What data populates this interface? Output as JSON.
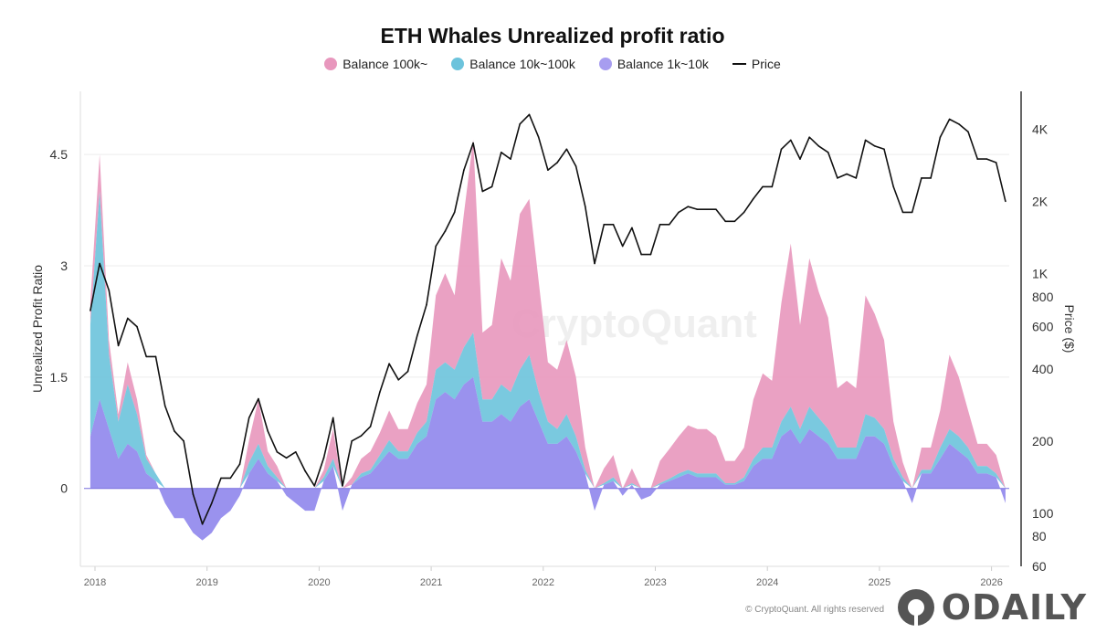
{
  "chart_data": {
    "type": "area",
    "title": "ETH Whales Unrealized profit ratio",
    "ylabel": "Unrealized Profit Ratio",
    "y2label": "Price ($)",
    "ylim": [
      -1.05,
      5.35
    ],
    "yticks": [
      "0",
      "1.5",
      "3",
      "4.5"
    ],
    "ytick_values": [
      0,
      1.5,
      3,
      4.5
    ],
    "y2scale": "log",
    "y2lim": [
      60,
      5750
    ],
    "y2ticks": [
      "4K",
      "2K",
      "1K",
      "800",
      "600",
      "400",
      "200",
      "100",
      "80",
      "60"
    ],
    "y2tick_values": [
      4000,
      2000,
      1000,
      800,
      600,
      400,
      200,
      100,
      80,
      60
    ],
    "xticks": [
      "2018",
      "2019",
      "2020",
      "2021",
      "2022",
      "2023",
      "2024",
      "2025",
      "2026"
    ],
    "legend_position": "top",
    "grid": true,
    "stacked": true,
    "x": [
      "2017-12",
      "2018-01",
      "2018-02",
      "2018-03",
      "2018-04",
      "2018-05",
      "2018-06",
      "2018-07",
      "2018-08",
      "2018-09",
      "2018-10",
      "2018-11",
      "2018-12",
      "2019-01",
      "2019-02",
      "2019-03",
      "2019-04",
      "2019-05",
      "2019-06",
      "2019-07",
      "2019-08",
      "2019-09",
      "2019-10",
      "2019-11",
      "2019-12",
      "2020-01",
      "2020-02",
      "2020-03",
      "2020-04",
      "2020-05",
      "2020-06",
      "2020-07",
      "2020-08",
      "2020-09",
      "2020-10",
      "2020-11",
      "2020-12",
      "2021-01",
      "2021-02",
      "2021-03",
      "2021-04",
      "2021-05",
      "2021-06",
      "2021-07",
      "2021-08",
      "2021-09",
      "2021-10",
      "2021-11",
      "2021-12",
      "2022-01",
      "2022-02",
      "2022-03",
      "2022-04",
      "2022-05",
      "2022-06",
      "2022-07",
      "2022-08",
      "2022-09",
      "2022-10",
      "2022-11",
      "2022-12",
      "2023-01",
      "2023-02",
      "2023-03",
      "2023-04",
      "2023-05",
      "2023-06",
      "2023-07",
      "2023-08",
      "2023-09",
      "2023-10",
      "2023-11",
      "2023-12",
      "2024-01",
      "2024-02",
      "2024-03",
      "2024-04",
      "2024-05",
      "2024-06",
      "2024-07",
      "2024-08",
      "2024-09",
      "2024-10",
      "2024-11",
      "2024-12",
      "2025-01",
      "2025-02",
      "2025-03",
      "2025-04",
      "2025-05",
      "2025-06",
      "2025-07",
      "2025-08",
      "2025-09",
      "2025-10",
      "2025-11",
      "2025-12",
      "2026-01",
      "2026-02"
    ],
    "series": [
      {
        "name": "Balance 1k~10k",
        "color": "#8f86ec",
        "values": [
          0.7,
          1.2,
          0.8,
          0.4,
          0.6,
          0.5,
          0.2,
          0.1,
          -0.2,
          -0.4,
          -0.4,
          -0.6,
          -0.7,
          -0.6,
          -0.4,
          -0.3,
          -0.1,
          0.2,
          0.4,
          0.2,
          0.1,
          -0.1,
          -0.2,
          -0.3,
          -0.3,
          0.1,
          0.3,
          -0.3,
          0.05,
          0.15,
          0.2,
          0.35,
          0.5,
          0.4,
          0.4,
          0.6,
          0.7,
          1.2,
          1.3,
          1.2,
          1.4,
          1.5,
          0.9,
          0.9,
          1.0,
          0.9,
          1.1,
          1.2,
          0.9,
          0.6,
          0.6,
          0.7,
          0.5,
          0.2,
          -0.3,
          0.05,
          0.1,
          -0.1,
          0.05,
          -0.15,
          -0.1,
          0.05,
          0.1,
          0.15,
          0.2,
          0.15,
          0.15,
          0.15,
          0.05,
          0.05,
          0.1,
          0.3,
          0.4,
          0.4,
          0.7,
          0.8,
          0.6,
          0.8,
          0.7,
          0.6,
          0.4,
          0.4,
          0.4,
          0.7,
          0.7,
          0.6,
          0.3,
          0.1,
          -0.2,
          0.2,
          0.2,
          0.4,
          0.6,
          0.5,
          0.4,
          0.2,
          0.2,
          0.15,
          -0.2
        ]
      },
      {
        "name": "Balance 10k~100k",
        "color": "#6cc3dc",
        "values": [
          1.5,
          2.8,
          1.0,
          0.5,
          0.8,
          0.5,
          0.2,
          0.1,
          0,
          0,
          0,
          0,
          0,
          0,
          0,
          0,
          0,
          0.15,
          0.2,
          0.1,
          0.05,
          0,
          0,
          0,
          0,
          0.05,
          0.1,
          0,
          0,
          0.05,
          0.05,
          0.1,
          0.15,
          0.1,
          0.1,
          0.15,
          0.2,
          0.4,
          0.4,
          0.4,
          0.5,
          0.6,
          0.3,
          0.3,
          0.4,
          0.4,
          0.5,
          0.6,
          0.4,
          0.3,
          0.2,
          0.3,
          0.2,
          0.05,
          0,
          0.02,
          0.05,
          0,
          0.02,
          0,
          0,
          0.02,
          0.03,
          0.05,
          0.05,
          0.05,
          0.05,
          0.05,
          0.02,
          0.02,
          0.05,
          0.1,
          0.15,
          0.15,
          0.2,
          0.3,
          0.2,
          0.3,
          0.25,
          0.2,
          0.15,
          0.15,
          0.15,
          0.3,
          0.25,
          0.2,
          0.1,
          0.05,
          0,
          0.05,
          0.05,
          0.15,
          0.2,
          0.2,
          0.15,
          0.1,
          0.1,
          0.05,
          0
        ]
      },
      {
        "name": "Balance 100k~",
        "color": "#e897bd",
        "values": [
          0.3,
          0.5,
          0.2,
          0.1,
          0.3,
          0.2,
          0.05,
          0,
          0,
          0,
          0,
          0,
          0,
          0,
          0,
          0,
          0,
          0.3,
          0.6,
          0.2,
          0.15,
          0,
          0,
          0,
          0,
          0.1,
          0.4,
          0,
          0.1,
          0.2,
          0.25,
          0.3,
          0.4,
          0.3,
          0.3,
          0.4,
          0.5,
          1.0,
          1.2,
          1.0,
          1.8,
          2.6,
          0.9,
          1.0,
          1.7,
          1.5,
          2.1,
          2.1,
          1.5,
          0.8,
          0.8,
          1.0,
          0.8,
          0.3,
          0,
          0.2,
          0.3,
          0,
          0.2,
          0,
          0,
          0.3,
          0.4,
          0.5,
          0.6,
          0.6,
          0.6,
          0.5,
          0.3,
          0.3,
          0.4,
          0.8,
          1.0,
          0.9,
          1.6,
          2.2,
          1.4,
          2.0,
          1.7,
          1.5,
          0.8,
          0.9,
          0.8,
          1.6,
          1.4,
          1.2,
          0.5,
          0.2,
          0,
          0.3,
          0.3,
          0.5,
          1.0,
          0.8,
          0.5,
          0.3,
          0.3,
          0.25,
          0
        ]
      },
      {
        "name": "Price",
        "color": "#111111",
        "axis": "right",
        "values": [
          700,
          1100,
          850,
          500,
          650,
          600,
          450,
          450,
          280,
          220,
          200,
          120,
          90,
          110,
          140,
          140,
          160,
          250,
          300,
          220,
          180,
          170,
          180,
          150,
          130,
          170,
          250,
          130,
          200,
          210,
          230,
          320,
          420,
          360,
          390,
          550,
          740,
          1300,
          1500,
          1800,
          2700,
          3500,
          2200,
          2300,
          3200,
          3000,
          4200,
          4600,
          3700,
          2700,
          2900,
          3300,
          2800,
          1900,
          1100,
          1600,
          1600,
          1300,
          1550,
          1200,
          1200,
          1600,
          1600,
          1800,
          1900,
          1850,
          1850,
          1850,
          1650,
          1650,
          1800,
          2050,
          2300,
          2300,
          3300,
          3600,
          3000,
          3700,
          3400,
          3200,
          2500,
          2600,
          2500,
          3600,
          3400,
          3300,
          2300,
          1800,
          1800,
          2500,
          2500,
          3700,
          4400,
          4200,
          3900,
          3000,
          3000,
          2900,
          2000
        ]
      }
    ]
  },
  "watermark": "CryptoQuant",
  "copyright": "© CryptoQuant. All rights reserved",
  "logo_text": "ODAILY"
}
